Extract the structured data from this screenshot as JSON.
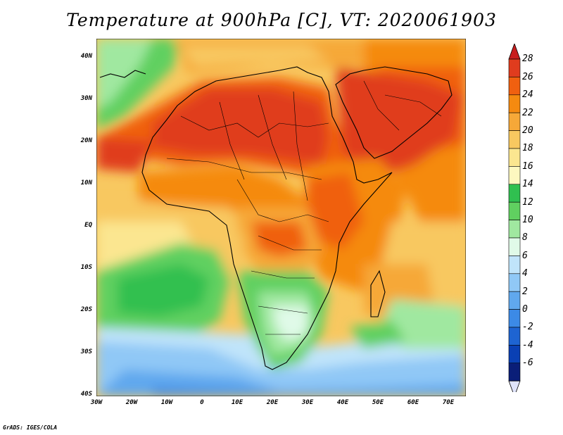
{
  "title": "Temperature at 900hPa [C], VT: 2020061903",
  "credit": "GrADS: IGES/COLA",
  "map": {
    "lat_ticks": [
      "40N",
      "30N",
      "20N",
      "10N",
      "EQ",
      "10S",
      "20S",
      "30S",
      "40S"
    ],
    "lon_ticks": [
      "30W",
      "20W",
      "10W",
      "0",
      "10E",
      "20E",
      "30E",
      "40E",
      "50E",
      "60E",
      "70E"
    ]
  },
  "colorbar": {
    "labels": [
      "28",
      "26",
      "24",
      "22",
      "20",
      "18",
      "16",
      "14",
      "12",
      "10",
      "8",
      "6",
      "4",
      "2",
      "0",
      "-2",
      "-4",
      "-6"
    ],
    "colors": [
      "#e03c1e",
      "#f06010",
      "#f58a10",
      "#f6a838",
      "#f8c860",
      "#fbe690",
      "#fdf8c0",
      "#30c050",
      "#60d060",
      "#a0e8a0",
      "#e0fae8",
      "#c0e4fa",
      "#90c8f6",
      "#60a8ee",
      "#3c8ae6",
      "#1e64d2",
      "#0a40b4",
      "#0a1e78"
    ],
    "top_arrow_color": "#c81e1e",
    "bottom_arrow_color": "#e0e4fa"
  }
}
